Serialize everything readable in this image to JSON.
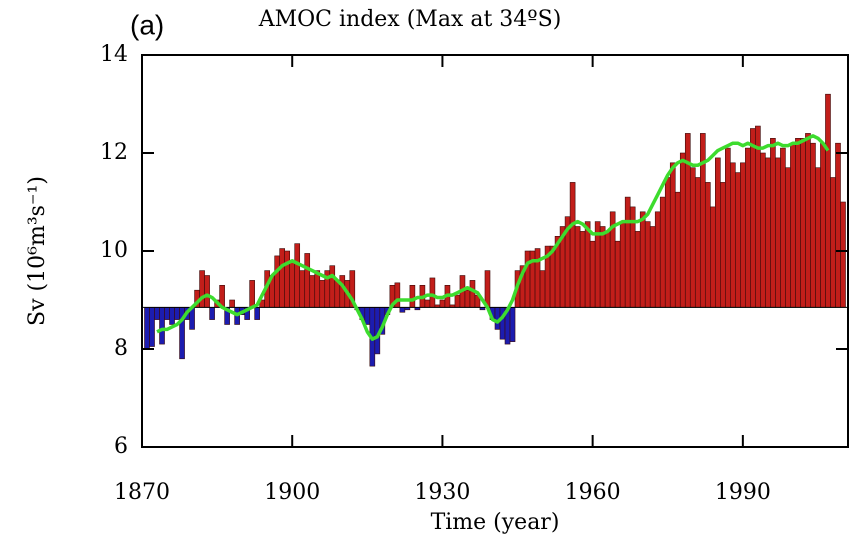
{
  "chart_data": {
    "type": "bar",
    "title": "AMOC index (Max at 34ºS)",
    "panel_label": "(a)",
    "xlabel": "Time (year)",
    "ylabel": "Sv (10⁶m³s⁻¹)",
    "xlim": [
      1870,
      2011
    ],
    "ylim": [
      6,
      14
    ],
    "xticks": [
      1870,
      1900,
      1930,
      1960,
      1990
    ],
    "yticks": [
      6,
      8,
      10,
      12,
      14
    ],
    "baseline": 8.85,
    "above_color": "#c21e1a",
    "below_color": "#1c1cb0",
    "x": [
      1871,
      1872,
      1873,
      1874,
      1875,
      1876,
      1877,
      1878,
      1879,
      1880,
      1881,
      1882,
      1883,
      1884,
      1885,
      1886,
      1887,
      1888,
      1889,
      1890,
      1891,
      1892,
      1893,
      1894,
      1895,
      1896,
      1897,
      1898,
      1899,
      1900,
      1901,
      1902,
      1903,
      1904,
      1905,
      1906,
      1907,
      1908,
      1909,
      1910,
      1911,
      1912,
      1913,
      1914,
      1915,
      1916,
      1917,
      1918,
      1919,
      1920,
      1921,
      1922,
      1923,
      1924,
      1925,
      1926,
      1927,
      1928,
      1929,
      1930,
      1931,
      1932,
      1933,
      1934,
      1935,
      1936,
      1937,
      1938,
      1939,
      1940,
      1941,
      1942,
      1943,
      1944,
      1945,
      1946,
      1947,
      1948,
      1949,
      1950,
      1951,
      1952,
      1953,
      1954,
      1955,
      1956,
      1957,
      1958,
      1959,
      1960,
      1961,
      1962,
      1963,
      1964,
      1965,
      1966,
      1967,
      1968,
      1969,
      1970,
      1971,
      1972,
      1973,
      1974,
      1975,
      1976,
      1977,
      1978,
      1979,
      1980,
      1981,
      1982,
      1983,
      1984,
      1985,
      1986,
      1987,
      1988,
      1989,
      1990,
      1991,
      1992,
      1993,
      1994,
      1995,
      1996,
      1997,
      1998,
      1999,
      2000,
      2001,
      2002,
      2003,
      2004,
      2005,
      2006,
      2007,
      2008,
      2009,
      2010
    ],
    "bars": {
      "values": [
        8.0,
        8.05,
        8.6,
        8.1,
        8.6,
        8.5,
        8.6,
        7.8,
        8.6,
        8.4,
        9.2,
        9.6,
        9.5,
        8.6,
        9.0,
        9.3,
        8.5,
        9.0,
        8.5,
        8.7,
        8.6,
        9.4,
        8.6,
        9.0,
        9.6,
        9.5,
        9.9,
        10.05,
        10.0,
        9.8,
        10.15,
        9.6,
        9.95,
        9.5,
        9.6,
        9.4,
        9.6,
        9.7,
        9.4,
        9.5,
        9.4,
        9.6,
        8.8,
        8.6,
        8.5,
        7.65,
        7.9,
        8.3,
        8.7,
        9.3,
        9.35,
        8.75,
        8.8,
        9.3,
        8.8,
        9.3,
        9.0,
        9.45,
        8.9,
        9.0,
        9.3,
        8.9,
        9.1,
        9.5,
        9.2,
        9.4,
        9.1,
        8.8,
        9.6,
        8.6,
        8.4,
        8.2,
        8.1,
        8.15,
        9.6,
        9.7,
        10.0,
        10.0,
        10.05,
        9.6,
        10.1,
        10.1,
        10.3,
        10.5,
        10.7,
        11.4,
        10.5,
        10.4,
        10.6,
        10.2,
        10.6,
        10.5,
        10.4,
        10.8,
        10.2,
        10.6,
        11.1,
        10.9,
        10.4,
        10.8,
        10.6,
        10.5,
        10.8,
        11.1,
        11.5,
        11.8,
        11.2,
        12.0,
        12.4,
        11.7,
        11.5,
        12.4,
        11.4,
        10.9,
        11.9,
        11.4,
        12.1,
        11.8,
        11.6,
        11.8,
        12.1,
        12.5,
        12.55,
        12.0,
        11.9,
        12.3,
        11.9,
        12.1,
        11.7,
        12.2,
        12.3,
        12.3,
        12.4,
        12.2,
        11.7,
        12.2,
        13.2,
        11.5,
        12.2,
        11.0
      ]
    },
    "line": {
      "color": "#3ddc2e",
      "values": [
        null,
        null,
        8.35,
        8.4,
        8.4,
        8.45,
        8.5,
        8.6,
        8.75,
        8.85,
        8.95,
        9.05,
        9.1,
        9.05,
        8.95,
        8.85,
        8.8,
        8.75,
        8.7,
        8.75,
        8.8,
        8.85,
        8.9,
        9.1,
        9.3,
        9.5,
        9.6,
        9.7,
        9.75,
        9.8,
        9.75,
        9.7,
        9.65,
        9.6,
        9.55,
        9.5,
        9.45,
        9.5,
        9.4,
        9.3,
        9.15,
        9.0,
        8.8,
        8.6,
        8.35,
        8.2,
        8.25,
        8.45,
        8.7,
        8.9,
        9.0,
        9.0,
        9.0,
        9.0,
        9.05,
        9.05,
        9.1,
        9.1,
        9.05,
        9.05,
        9.1,
        9.1,
        9.15,
        9.2,
        9.25,
        9.2,
        9.15,
        9.0,
        8.85,
        8.6,
        8.55,
        8.65,
        8.8,
        9.0,
        9.3,
        9.55,
        9.75,
        9.8,
        9.8,
        9.85,
        9.9,
        10.0,
        10.15,
        10.3,
        10.45,
        10.55,
        10.6,
        10.55,
        10.45,
        10.35,
        10.35,
        10.35,
        10.4,
        10.5,
        10.55,
        10.6,
        10.6,
        10.6,
        10.6,
        10.65,
        10.75,
        10.95,
        11.15,
        11.35,
        11.55,
        11.7,
        11.8,
        11.85,
        11.8,
        11.75,
        11.75,
        11.8,
        11.85,
        11.95,
        12.05,
        12.1,
        12.15,
        12.2,
        12.2,
        12.15,
        12.2,
        12.15,
        12.1,
        12.1,
        12.15,
        12.15,
        12.2,
        12.15,
        12.15,
        12.2,
        12.2,
        12.25,
        12.3,
        12.35,
        12.3,
        12.2,
        12.05,
        null,
        null,
        null
      ]
    }
  }
}
